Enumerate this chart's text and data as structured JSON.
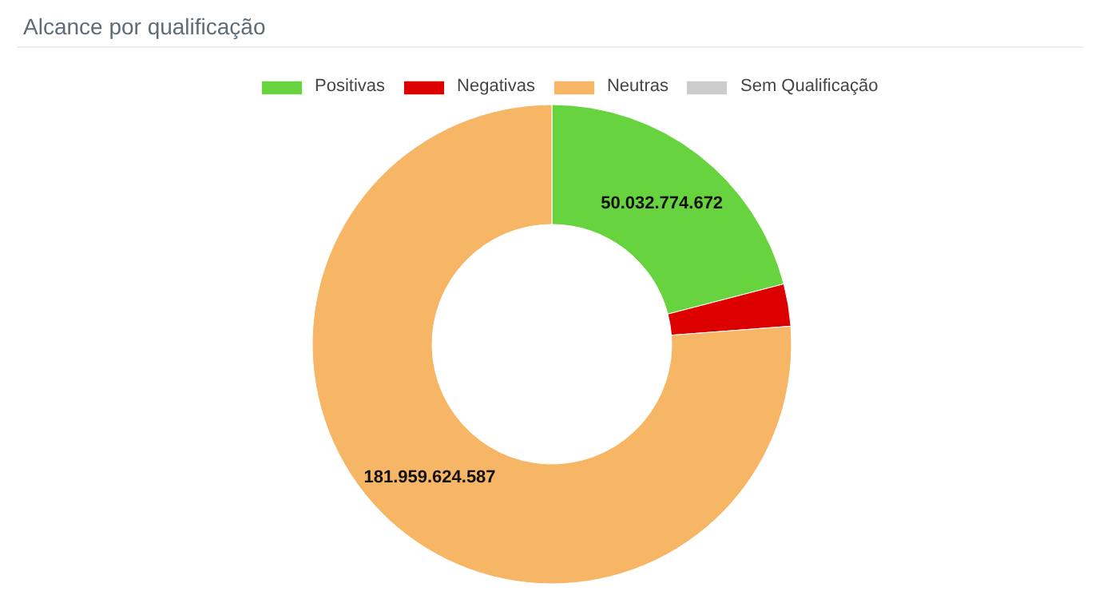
{
  "chart_data": {
    "type": "donut",
    "title": "Alcance por qualificação",
    "categories": [
      "Positivas",
      "Negativas",
      "Neutras",
      "Sem Qualificação"
    ],
    "values": [
      50032774672,
      6800000000,
      181959624587,
      0
    ],
    "colors": [
      "#66d33f",
      "#dc0000",
      "#f7b566",
      "#cccccc"
    ],
    "value_labels": [
      "50.032.774.672",
      null,
      "181.959.624.587",
      null
    ],
    "legend": "top"
  }
}
